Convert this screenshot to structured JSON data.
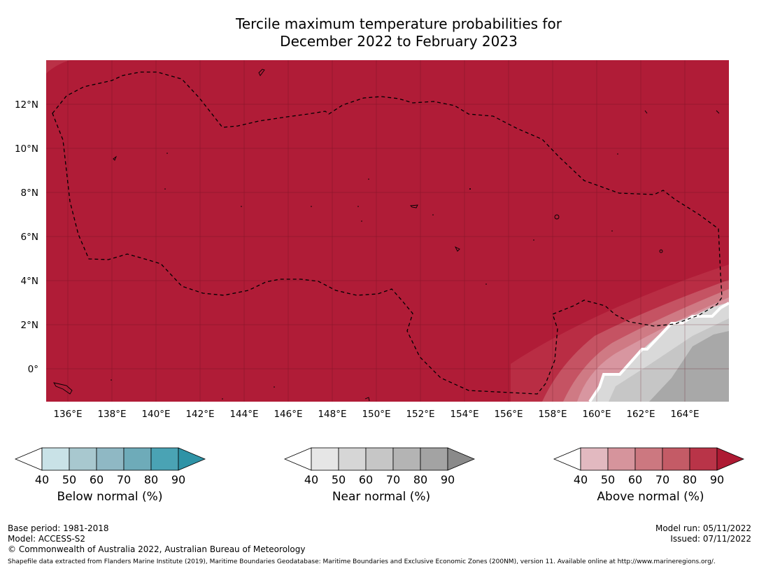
{
  "title": {
    "line1": "Tercile maximum temperature probabilities for",
    "line2": "December 2022 to February 2023"
  },
  "map": {
    "lat_labels": [
      "12°N",
      "10°N",
      "8°N",
      "6°N",
      "4°N",
      "2°N",
      "0°"
    ],
    "lon_labels": [
      "136°E",
      "138°E",
      "140°E",
      "142°E",
      "144°E",
      "146°E",
      "148°E",
      "150°E",
      "152°E",
      "154°E",
      "156°E",
      "158°E",
      "160°E",
      "162°E",
      "164°E"
    ],
    "extent": {
      "lon_min": 135.0,
      "lon_max": 166.0,
      "lat_min": -1.5,
      "lat_max": 14.0
    },
    "dominant_category": "Above normal 80-90%",
    "colors": {
      "above_90": "#b01c37",
      "above_80": "#b92d44",
      "above_70": "#c55363",
      "above_60": "#cf7a84",
      "above_50": "#d896a0",
      "near_60": "#e6e6e6",
      "near_70": "#d5d5d5",
      "near_80": "#c6c6c6",
      "near_90": "#a8a8a8"
    }
  },
  "colorbars": [
    {
      "title": "Below normal (%)",
      "ticks": [
        "40",
        "50",
        "60",
        "70",
        "80",
        "90"
      ],
      "colors": [
        "#ffffff",
        "#c9e2e7",
        "#a8c8cf",
        "#8fb8c4",
        "#6eabb9",
        "#4aa3b4",
        "#2f93a6"
      ]
    },
    {
      "title": "Near normal (%)",
      "ticks": [
        "40",
        "50",
        "60",
        "70",
        "80",
        "90"
      ],
      "colors": [
        "#ffffff",
        "#e6e6e6",
        "#d6d6d6",
        "#c6c6c6",
        "#b4b4b4",
        "#a3a3a3",
        "#8a8a8a"
      ]
    },
    {
      "title": "Above normal (%)",
      "ticks": [
        "40",
        "50",
        "60",
        "70",
        "80",
        "90"
      ],
      "colors": [
        "#ffffff",
        "#e2b9c0",
        "#d6949c",
        "#cc7880",
        "#c45b66",
        "#b93448",
        "#ae1a33"
      ]
    }
  ],
  "footer": {
    "base_period": "Base period: 1981-2018",
    "model": "Model: ACCESS-S2",
    "copyright": "© Commonwealth of Australia 2022, Australian Bureau of Meteorology",
    "model_run": "Model run: 05/11/2022",
    "issued": "Issued: 07/11/2022",
    "shapefile": "Shapefile data extracted from Flanders Marine Institute (2019), Maritime Boundaries Geodatabase: Maritime Boundaries and Exclusive Economic Zones (200NM), version 11. Available online at http://www.marineregions.org/."
  }
}
